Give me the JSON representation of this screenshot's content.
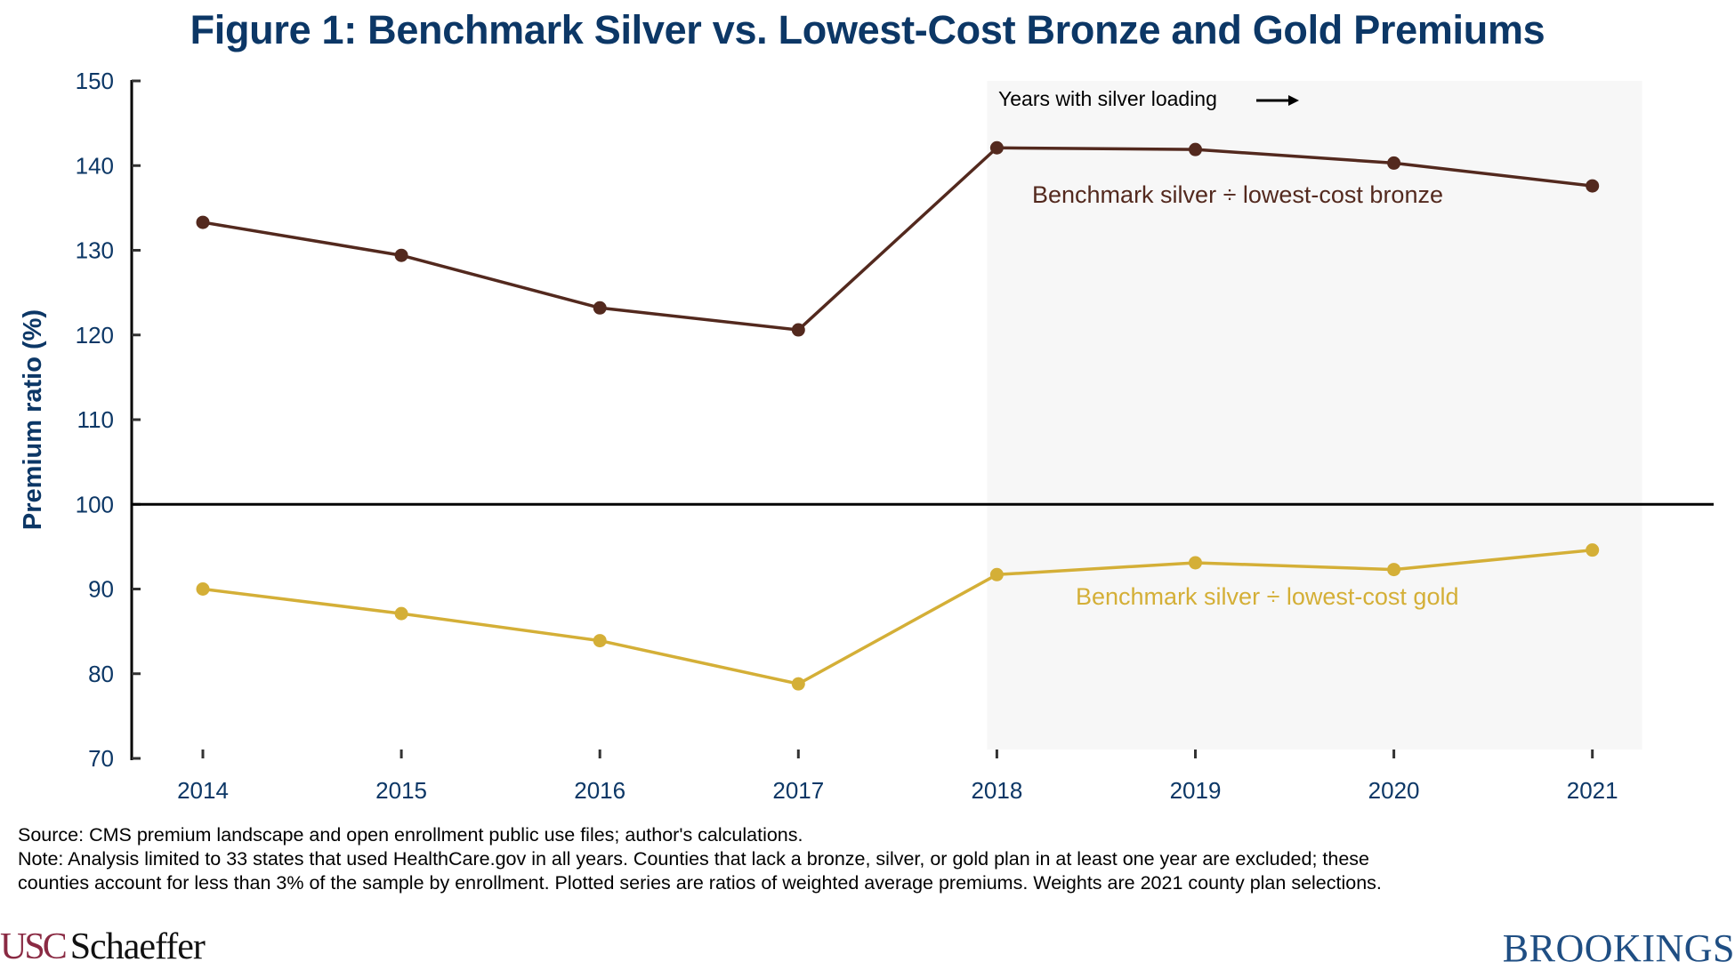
{
  "chart_data": {
    "type": "line",
    "title": "Figure 1: Benchmark Silver vs. Lowest-Cost Bronze and Gold Premiums",
    "xlabel": "",
    "ylabel": "Premium ratio (%)",
    "ylim": [
      70,
      150
    ],
    "yticks": [
      "70",
      "80",
      "90",
      "100",
      "110",
      "120",
      "130",
      "140",
      "150"
    ],
    "ytick_values": [
      70,
      80,
      90,
      100,
      110,
      120,
      130,
      140,
      150
    ],
    "x": [
      "2014",
      "2015",
      "2016",
      "2017",
      "2018",
      "2019",
      "2020",
      "2021"
    ],
    "reference_line": {
      "value": 100
    },
    "shaded_region": {
      "from": "2018",
      "to": "2021",
      "label": "Years with silver loading"
    },
    "grid": false,
    "series": [
      {
        "name": "Benchmark silver ÷ lowest-cost bronze",
        "color": "#53291e",
        "values": [
          133.3,
          129.4,
          123.2,
          120.6,
          142.1,
          141.9,
          140.3,
          137.6
        ]
      },
      {
        "name": "Benchmark silver ÷ lowest-cost gold",
        "color": "#d4af37",
        "values": [
          90.0,
          87.1,
          83.9,
          78.8,
          91.7,
          93.1,
          92.3,
          94.6
        ]
      }
    ]
  },
  "colors": {
    "title": "#0c3766",
    "axis_text": "#0c3766",
    "shade": "#f7f7f7",
    "usc": "#8a2a43",
    "brookings": "#1f4e83"
  },
  "footer": {
    "source": "Source: CMS premium landscape and open enrollment public use files; author's calculations.",
    "note_line1": "Note: Analysis limited to 33 states that used HealthCare.gov in all years. Counties that lack a bronze, silver, or gold plan in at least one year are excluded; these",
    "note_line2": "counties account for less than 3% of the sample by enrollment. Plotted series are ratios of weighted average premiums. Weights are 2021 county plan selections."
  },
  "logos": {
    "usc_part1": "USC",
    "usc_part2": "Schaeffer",
    "brookings": "BROOKINGS"
  }
}
